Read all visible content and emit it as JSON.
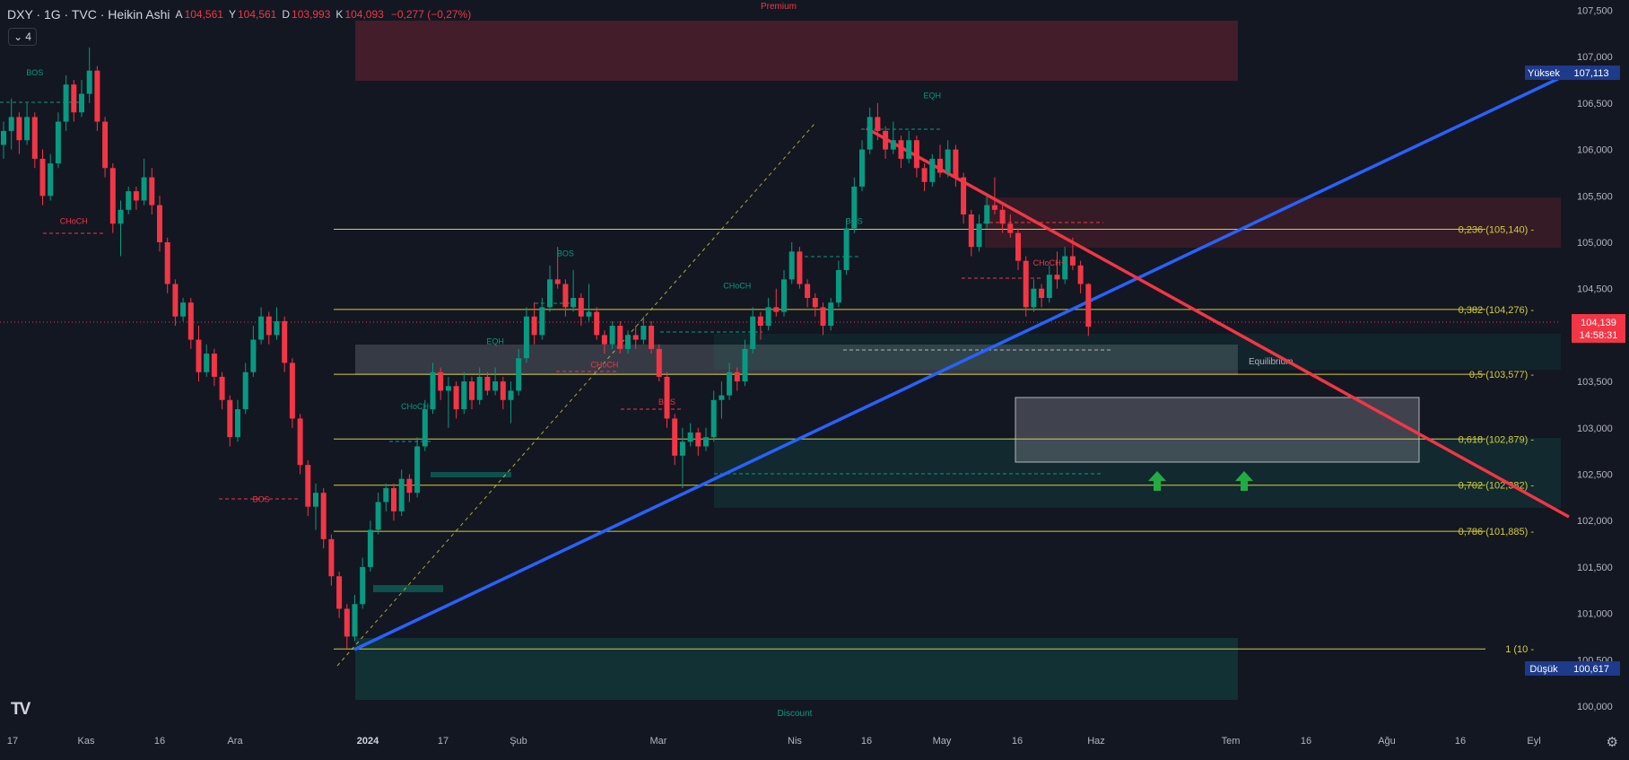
{
  "header": {
    "title": "DXY · 1G · TVC · Heikin Ashi",
    "open_label": "A",
    "open": "104,561",
    "high_label": "Y",
    "high": "104,561",
    "low_label": "D",
    "low": "103,993",
    "close_label": "K",
    "close": "104,093",
    "change": "−0,277 (−0,27%)",
    "indicator_count": "4"
  },
  "colors": {
    "background": "#131722",
    "up": "#089981",
    "down": "#f23645",
    "fib_line": "#d4cc3a",
    "trend_blue": "#2962ff",
    "trend_red": "#f23645"
  },
  "icons": {
    "logo": "tradingview-logo",
    "settings": "gear-icon",
    "arrow": "up-arrow-icon"
  },
  "chart_data": {
    "type": "candlestick",
    "style": "Heikin Ashi",
    "symbol": "DXY",
    "y_axis": {
      "min": 100.0,
      "max": 107.5,
      "ticks": [
        "107,500",
        "107,000",
        "106,500",
        "106,000",
        "105,500",
        "105,000",
        "104,500",
        "104,000",
        "103,500",
        "103,000",
        "102,500",
        "102,000",
        "101,500",
        "101,000",
        "100,500",
        "100,000"
      ]
    },
    "x_axis_labels": [
      "17",
      "Kas",
      "16",
      "Ara",
      "2024",
      "17",
      "Şub",
      "Mar",
      "Nis",
      "16",
      "May",
      "16",
      "Haz",
      "Tem",
      "16",
      "Ağu",
      "16",
      "Eyl"
    ],
    "x_axis_bold": [
      "2024"
    ],
    "current_price": {
      "value": "104,139",
      "countdown": "14:58:31"
    },
    "high_marker": {
      "label": "Yüksek",
      "value": "107,113"
    },
    "low_marker": {
      "label": "Düşük",
      "value": "100,617"
    },
    "fib_levels": [
      {
        "label": "0,236 (105,140)",
        "price": 105.14
      },
      {
        "label": "0,382 (104,276)",
        "price": 104.276
      },
      {
        "label": "0,5 (103,577)",
        "price": 103.577
      },
      {
        "label": "0,618 (102,879)",
        "price": 102.879
      },
      {
        "label": "0,702 (102,382)",
        "price": 102.382
      },
      {
        "label": "0,786 (101,885)",
        "price": 101.885
      },
      {
        "label": "1 (10",
        "price": 100.617
      }
    ],
    "zone_labels": {
      "premium": "Premium",
      "equilibrium": "Equilibrium",
      "discount": "Discount"
    },
    "structure_labels": [
      {
        "text": "BOS",
        "color": "up",
        "t": 4,
        "p": 106.8
      },
      {
        "text": "CHoCH",
        "color": "down",
        "t": 9,
        "p": 105.2
      },
      {
        "text": "BOS",
        "color": "down",
        "t": 33,
        "p": 102.2
      },
      {
        "text": "CHoCH+",
        "color": "up",
        "t": 53,
        "p": 103.2
      },
      {
        "text": "EQH",
        "color": "up",
        "t": 63,
        "p": 103.9
      },
      {
        "text": "BOS",
        "color": "up",
        "t": 72,
        "p": 104.85
      },
      {
        "text": "CHoCH",
        "color": "down",
        "t": 77,
        "p": 103.65
      },
      {
        "text": "BOS",
        "color": "down",
        "t": 85,
        "p": 103.25
      },
      {
        "text": "CHoCH",
        "color": "up",
        "t": 94,
        "p": 104.5
      },
      {
        "text": "BOS",
        "color": "up",
        "t": 109,
        "p": 105.2
      },
      {
        "text": "EQH",
        "color": "up",
        "t": 119,
        "p": 106.55
      },
      {
        "text": "CHoCH+",
        "color": "down",
        "t": 134,
        "p": 104.75
      }
    ],
    "candles": [
      {
        "o": 106.05,
        "h": 106.3,
        "l": 105.9,
        "c": 106.2
      },
      {
        "o": 106.2,
        "h": 106.55,
        "l": 106.0,
        "c": 106.35
      },
      {
        "o": 106.35,
        "h": 106.4,
        "l": 105.95,
        "c": 106.1
      },
      {
        "o": 106.1,
        "h": 106.5,
        "l": 106.05,
        "c": 106.35
      },
      {
        "o": 106.35,
        "h": 106.4,
        "l": 105.8,
        "c": 105.9
      },
      {
        "o": 105.9,
        "h": 106.0,
        "l": 105.4,
        "c": 105.5
      },
      {
        "o": 105.5,
        "h": 105.95,
        "l": 105.45,
        "c": 105.85
      },
      {
        "o": 105.85,
        "h": 106.4,
        "l": 105.8,
        "c": 106.3
      },
      {
        "o": 106.3,
        "h": 106.8,
        "l": 106.2,
        "c": 106.7
      },
      {
        "o": 106.7,
        "h": 106.75,
        "l": 106.3,
        "c": 106.4
      },
      {
        "o": 106.4,
        "h": 106.75,
        "l": 106.35,
        "c": 106.6
      },
      {
        "o": 106.6,
        "h": 107.1,
        "l": 106.5,
        "c": 106.85
      },
      {
        "o": 106.85,
        "h": 106.9,
        "l": 106.2,
        "c": 106.3
      },
      {
        "o": 106.3,
        "h": 106.35,
        "l": 105.7,
        "c": 105.8
      },
      {
        "o": 105.8,
        "h": 105.85,
        "l": 105.1,
        "c": 105.2
      },
      {
        "o": 105.2,
        "h": 105.45,
        "l": 104.85,
        "c": 105.35
      },
      {
        "o": 105.35,
        "h": 105.6,
        "l": 105.3,
        "c": 105.55
      },
      {
        "o": 105.55,
        "h": 105.6,
        "l": 105.35,
        "c": 105.45
      },
      {
        "o": 105.45,
        "h": 105.9,
        "l": 105.4,
        "c": 105.7
      },
      {
        "o": 105.7,
        "h": 105.8,
        "l": 105.3,
        "c": 105.4
      },
      {
        "o": 105.4,
        "h": 105.5,
        "l": 104.9,
        "c": 105.0
      },
      {
        "o": 105.0,
        "h": 105.05,
        "l": 104.45,
        "c": 104.55
      },
      {
        "o": 104.55,
        "h": 104.6,
        "l": 104.1,
        "c": 104.2
      },
      {
        "o": 104.2,
        "h": 104.4,
        "l": 104.15,
        "c": 104.35
      },
      {
        "o": 104.35,
        "h": 104.4,
        "l": 103.85,
        "c": 103.95
      },
      {
        "o": 103.95,
        "h": 104.1,
        "l": 103.5,
        "c": 103.6
      },
      {
        "o": 103.6,
        "h": 103.9,
        "l": 103.55,
        "c": 103.8
      },
      {
        "o": 103.8,
        "h": 103.85,
        "l": 103.45,
        "c": 103.55
      },
      {
        "o": 103.55,
        "h": 103.6,
        "l": 103.2,
        "c": 103.3
      },
      {
        "o": 103.3,
        "h": 103.35,
        "l": 102.8,
        "c": 102.9
      },
      {
        "o": 102.9,
        "h": 103.3,
        "l": 102.85,
        "c": 103.2
      },
      {
        "o": 103.2,
        "h": 103.7,
        "l": 103.15,
        "c": 103.6
      },
      {
        "o": 103.6,
        "h": 104.1,
        "l": 103.55,
        "c": 103.95
      },
      {
        "o": 103.95,
        "h": 104.3,
        "l": 103.9,
        "c": 104.2
      },
      {
        "o": 104.2,
        "h": 104.25,
        "l": 103.9,
        "c": 104.0
      },
      {
        "o": 104.0,
        "h": 104.3,
        "l": 103.95,
        "c": 104.15
      },
      {
        "o": 104.15,
        "h": 104.2,
        "l": 103.6,
        "c": 103.7
      },
      {
        "o": 103.7,
        "h": 103.75,
        "l": 103.0,
        "c": 103.1
      },
      {
        "o": 103.1,
        "h": 103.15,
        "l": 102.5,
        "c": 102.6
      },
      {
        "o": 102.6,
        "h": 102.65,
        "l": 102.05,
        "c": 102.15
      },
      {
        "o": 102.15,
        "h": 102.4,
        "l": 101.9,
        "c": 102.3
      },
      {
        "o": 102.3,
        "h": 102.35,
        "l": 101.7,
        "c": 101.8
      },
      {
        "o": 101.8,
        "h": 101.85,
        "l": 101.3,
        "c": 101.4
      },
      {
        "o": 101.4,
        "h": 101.45,
        "l": 100.95,
        "c": 101.05
      },
      {
        "o": 101.05,
        "h": 101.1,
        "l": 100.62,
        "c": 100.75
      },
      {
        "o": 100.75,
        "h": 101.2,
        "l": 100.7,
        "c": 101.1
      },
      {
        "o": 101.1,
        "h": 101.6,
        "l": 101.05,
        "c": 101.5
      },
      {
        "o": 101.5,
        "h": 102.0,
        "l": 101.45,
        "c": 101.9
      },
      {
        "o": 101.9,
        "h": 102.3,
        "l": 101.85,
        "c": 102.2
      },
      {
        "o": 102.2,
        "h": 102.4,
        "l": 102.1,
        "c": 102.35
      },
      {
        "o": 102.35,
        "h": 102.4,
        "l": 102.0,
        "c": 102.1
      },
      {
        "o": 102.1,
        "h": 102.55,
        "l": 102.05,
        "c": 102.45
      },
      {
        "o": 102.45,
        "h": 102.5,
        "l": 102.2,
        "c": 102.3
      },
      {
        "o": 102.3,
        "h": 102.9,
        "l": 102.25,
        "c": 102.8
      },
      {
        "o": 102.8,
        "h": 103.3,
        "l": 102.75,
        "c": 103.2
      },
      {
        "o": 103.2,
        "h": 103.7,
        "l": 103.15,
        "c": 103.6
      },
      {
        "o": 103.6,
        "h": 103.65,
        "l": 103.3,
        "c": 103.4
      },
      {
        "o": 103.4,
        "h": 103.55,
        "l": 103.0,
        "c": 103.45
      },
      {
        "o": 103.45,
        "h": 103.5,
        "l": 103.1,
        "c": 103.2
      },
      {
        "o": 103.2,
        "h": 103.6,
        "l": 103.15,
        "c": 103.5
      },
      {
        "o": 103.5,
        "h": 103.55,
        "l": 103.2,
        "c": 103.3
      },
      {
        "o": 103.3,
        "h": 103.65,
        "l": 103.25,
        "c": 103.55
      },
      {
        "o": 103.55,
        "h": 103.6,
        "l": 103.35,
        "c": 103.4
      },
      {
        "o": 103.4,
        "h": 103.65,
        "l": 103.35,
        "c": 103.5
      },
      {
        "o": 103.5,
        "h": 103.55,
        "l": 103.2,
        "c": 103.3
      },
      {
        "o": 103.3,
        "h": 103.5,
        "l": 103.05,
        "c": 103.4
      },
      {
        "o": 103.4,
        "h": 103.85,
        "l": 103.35,
        "c": 103.75
      },
      {
        "o": 103.75,
        "h": 104.3,
        "l": 103.7,
        "c": 104.2
      },
      {
        "o": 104.2,
        "h": 104.35,
        "l": 103.9,
        "c": 104.0
      },
      {
        "o": 104.0,
        "h": 104.4,
        "l": 103.95,
        "c": 104.3
      },
      {
        "o": 104.3,
        "h": 104.75,
        "l": 104.25,
        "c": 104.6
      },
      {
        "o": 104.6,
        "h": 104.95,
        "l": 104.5,
        "c": 104.55
      },
      {
        "o": 104.55,
        "h": 104.6,
        "l": 104.2,
        "c": 104.3
      },
      {
        "o": 104.3,
        "h": 104.7,
        "l": 104.25,
        "c": 104.4
      },
      {
        "o": 104.4,
        "h": 104.45,
        "l": 104.1,
        "c": 104.2
      },
      {
        "o": 104.2,
        "h": 104.55,
        "l": 104.15,
        "c": 104.25
      },
      {
        "o": 104.25,
        "h": 104.3,
        "l": 103.95,
        "c": 104.0
      },
      {
        "o": 104.0,
        "h": 104.05,
        "l": 103.8,
        "c": 103.9
      },
      {
        "o": 103.9,
        "h": 104.15,
        "l": 103.85,
        "c": 104.1
      },
      {
        "o": 104.1,
        "h": 104.15,
        "l": 103.8,
        "c": 103.85
      },
      {
        "o": 103.85,
        "h": 104.05,
        "l": 103.8,
        "c": 104.0
      },
      {
        "o": 104.0,
        "h": 104.1,
        "l": 103.85,
        "c": 103.95
      },
      {
        "o": 103.95,
        "h": 104.2,
        "l": 103.9,
        "c": 104.1
      },
      {
        "o": 104.1,
        "h": 104.15,
        "l": 103.8,
        "c": 103.85
      },
      {
        "o": 103.85,
        "h": 103.9,
        "l": 103.5,
        "c": 103.55
      },
      {
        "o": 103.55,
        "h": 103.6,
        "l": 103.0,
        "c": 103.1
      },
      {
        "o": 103.1,
        "h": 103.15,
        "l": 102.6,
        "c": 102.7
      },
      {
        "o": 102.7,
        "h": 103.0,
        "l": 102.35,
        "c": 102.85
      },
      {
        "o": 102.85,
        "h": 103.05,
        "l": 102.8,
        "c": 102.95
      },
      {
        "o": 102.95,
        "h": 103.0,
        "l": 102.7,
        "c": 102.8
      },
      {
        "o": 102.8,
        "h": 103.0,
        "l": 102.75,
        "c": 102.9
      },
      {
        "o": 102.9,
        "h": 103.4,
        "l": 102.85,
        "c": 103.3
      },
      {
        "o": 103.3,
        "h": 103.5,
        "l": 103.1,
        "c": 103.35
      },
      {
        "o": 103.35,
        "h": 103.7,
        "l": 103.3,
        "c": 103.6
      },
      {
        "o": 103.6,
        "h": 103.65,
        "l": 103.4,
        "c": 103.5
      },
      {
        "o": 103.5,
        "h": 103.95,
        "l": 103.45,
        "c": 103.85
      },
      {
        "o": 103.85,
        "h": 104.3,
        "l": 103.8,
        "c": 104.2
      },
      {
        "o": 104.2,
        "h": 104.25,
        "l": 103.95,
        "c": 104.1
      },
      {
        "o": 104.1,
        "h": 104.4,
        "l": 104.05,
        "c": 104.3
      },
      {
        "o": 104.3,
        "h": 104.5,
        "l": 104.2,
        "c": 104.25
      },
      {
        "o": 104.25,
        "h": 104.7,
        "l": 104.2,
        "c": 104.6
      },
      {
        "o": 104.6,
        "h": 105.0,
        "l": 104.55,
        "c": 104.9
      },
      {
        "o": 104.9,
        "h": 104.95,
        "l": 104.5,
        "c": 104.55
      },
      {
        "o": 104.55,
        "h": 104.6,
        "l": 104.3,
        "c": 104.4
      },
      {
        "o": 104.4,
        "h": 104.45,
        "l": 104.2,
        "c": 104.3
      },
      {
        "o": 104.3,
        "h": 104.35,
        "l": 104.0,
        "c": 104.1
      },
      {
        "o": 104.1,
        "h": 104.4,
        "l": 104.05,
        "c": 104.35
      },
      {
        "o": 104.35,
        "h": 104.8,
        "l": 104.3,
        "c": 104.7
      },
      {
        "o": 104.7,
        "h": 105.25,
        "l": 104.65,
        "c": 105.15
      },
      {
        "o": 105.15,
        "h": 105.7,
        "l": 105.1,
        "c": 105.6
      },
      {
        "o": 105.6,
        "h": 106.1,
        "l": 105.55,
        "c": 106.0
      },
      {
        "o": 106.0,
        "h": 106.45,
        "l": 105.95,
        "c": 106.35
      },
      {
        "o": 106.35,
        "h": 106.5,
        "l": 106.1,
        "c": 106.2
      },
      {
        "o": 106.2,
        "h": 106.25,
        "l": 105.9,
        "c": 106.0
      },
      {
        "o": 106.0,
        "h": 106.3,
        "l": 105.95,
        "c": 106.1
      },
      {
        "o": 106.1,
        "h": 106.15,
        "l": 105.8,
        "c": 105.9
      },
      {
        "o": 105.9,
        "h": 106.2,
        "l": 105.85,
        "c": 106.1
      },
      {
        "o": 106.1,
        "h": 106.15,
        "l": 105.7,
        "c": 105.8
      },
      {
        "o": 105.8,
        "h": 105.85,
        "l": 105.55,
        "c": 105.65
      },
      {
        "o": 105.65,
        "h": 105.95,
        "l": 105.6,
        "c": 105.9
      },
      {
        "o": 105.9,
        "h": 106.05,
        "l": 105.7,
        "c": 105.75
      },
      {
        "o": 105.75,
        "h": 106.1,
        "l": 105.7,
        "c": 106.0
      },
      {
        "o": 106.0,
        "h": 106.05,
        "l": 105.6,
        "c": 105.7
      },
      {
        "o": 105.7,
        "h": 105.75,
        "l": 105.2,
        "c": 105.3
      },
      {
        "o": 105.3,
        "h": 105.35,
        "l": 104.85,
        "c": 104.95
      },
      {
        "o": 104.95,
        "h": 105.3,
        "l": 104.9,
        "c": 105.2
      },
      {
        "o": 105.2,
        "h": 105.5,
        "l": 105.15,
        "c": 105.4
      },
      {
        "o": 105.4,
        "h": 105.7,
        "l": 105.3,
        "c": 105.35
      },
      {
        "o": 105.35,
        "h": 105.4,
        "l": 105.1,
        "c": 105.2
      },
      {
        "o": 105.2,
        "h": 105.3,
        "l": 105.05,
        "c": 105.1
      },
      {
        "o": 105.1,
        "h": 105.15,
        "l": 104.7,
        "c": 104.8
      },
      {
        "o": 104.8,
        "h": 104.85,
        "l": 104.2,
        "c": 104.3
      },
      {
        "o": 104.3,
        "h": 104.6,
        "l": 104.25,
        "c": 104.5
      },
      {
        "o": 104.5,
        "h": 104.55,
        "l": 104.3,
        "c": 104.4
      },
      {
        "o": 104.4,
        "h": 104.75,
        "l": 104.35,
        "c": 104.65
      },
      {
        "o": 104.65,
        "h": 104.9,
        "l": 104.5,
        "c": 104.6
      },
      {
        "o": 104.6,
        "h": 104.95,
        "l": 104.55,
        "c": 104.85
      },
      {
        "o": 104.85,
        "h": 105.05,
        "l": 104.7,
        "c": 104.75
      },
      {
        "o": 104.75,
        "h": 104.8,
        "l": 104.45,
        "c": 104.55
      },
      {
        "o": 104.55,
        "h": 104.56,
        "l": 103.99,
        "c": 104.09
      }
    ]
  }
}
